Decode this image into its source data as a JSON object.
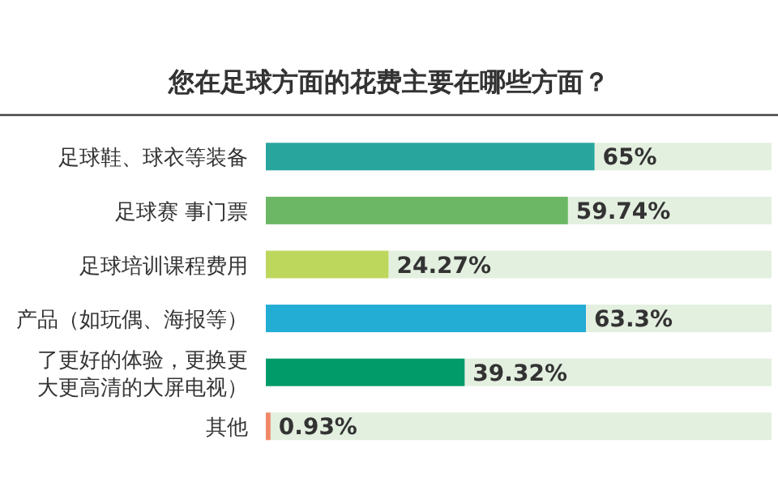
{
  "chart_data": {
    "type": "bar",
    "orientation": "horizontal",
    "title": "您在足球方面的花费主要在哪些方面？",
    "categories": [
      "足球鞋、球衣等装备",
      "足球赛 事门票",
      "足球培训课程费用",
      "产品（如玩偶、海报等）",
      "了更好的体验，更换更大更高清的大屏电视）",
      "其他"
    ],
    "values": [
      65,
      59.74,
      24.27,
      63.3,
      39.32,
      0.93
    ],
    "colors": [
      "#28a69e",
      "#6bb765",
      "#bdd75d",
      "#23acd4",
      "#019b69",
      "#f08868"
    ],
    "value_labels": [
      "65%",
      "59.74%",
      "24.27%",
      "63.3%",
      "39.32%",
      "0.93%"
    ],
    "grid": false
  }
}
